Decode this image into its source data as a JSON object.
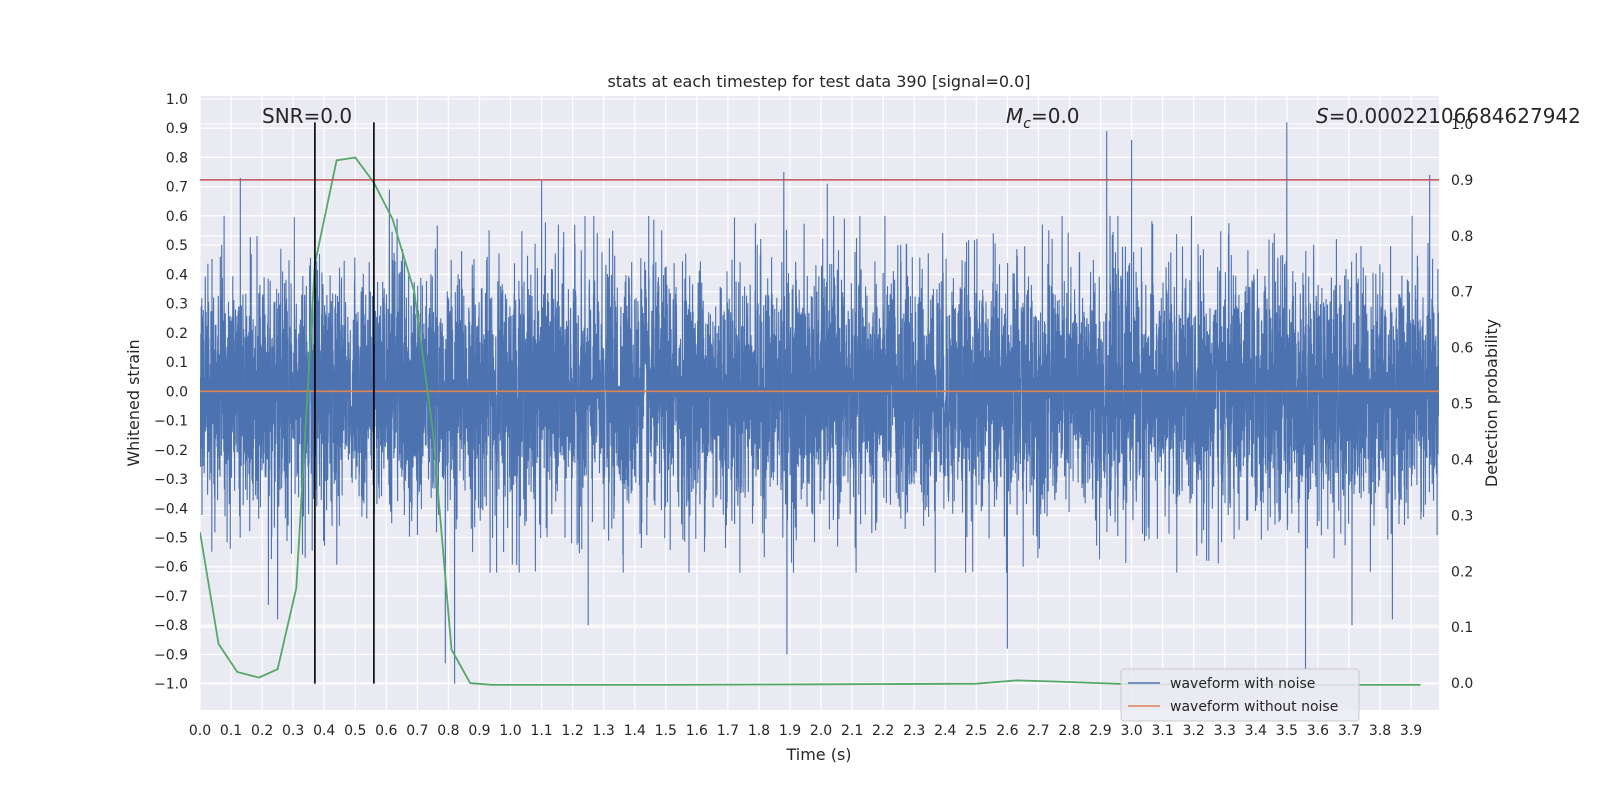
{
  "chart_data": {
    "type": "line",
    "title": "stats at each timestep for test data 390 [signal=0.0]",
    "xlabel": "Time (s)",
    "ylabel": "Whitened strain",
    "ylabel_right": "Detection probability",
    "xlim": [
      0.0,
      3.99
    ],
    "ylim": [
      -1.09,
      1.01
    ],
    "ylim_right": [
      -0.048,
      1.05
    ],
    "grid": true,
    "x_ticks": [
      "0.0",
      "0.1",
      "0.2",
      "0.3",
      "0.4",
      "0.5",
      "0.6",
      "0.7",
      "0.8",
      "0.9",
      "1.0",
      "1.1",
      "1.2",
      "1.3",
      "1.4",
      "1.5",
      "1.6",
      "1.7",
      "1.8",
      "1.9",
      "2.0",
      "2.1",
      "2.2",
      "2.3",
      "2.4",
      "2.5",
      "2.6",
      "2.7",
      "2.8",
      "2.9",
      "3.0",
      "3.1",
      "3.2",
      "3.3",
      "3.4",
      "3.5",
      "3.6",
      "3.7",
      "3.8",
      "3.9"
    ],
    "y_ticks": [
      "1.0",
      "0.9",
      "0.8",
      "0.7",
      "0.6",
      "0.5",
      "0.4",
      "0.3",
      "0.2",
      "0.1",
      "0.0",
      "−0.1",
      "−0.2",
      "−0.3",
      "−0.4",
      "−0.5",
      "−0.6",
      "−0.7",
      "−0.8",
      "−0.9",
      "−1.0"
    ],
    "y_ticks_right": [
      "1.0",
      "0.9",
      "0.8",
      "0.7",
      "0.6",
      "0.5",
      "0.4",
      "0.3",
      "0.2",
      "0.1",
      "0.0"
    ],
    "annotations": {
      "snr": "SNR=0.0",
      "mc_symbol": "M",
      "mc_sub": "c",
      "mc_value": "=0.0",
      "s_symbol": "S",
      "s_value": "=0.00022106684627942"
    },
    "series": [
      {
        "name": "waveform with noise",
        "color": "#4c72b0",
        "kind": "noise",
        "sample_rate": 2048,
        "envelope": 0.5,
        "spikes": [
          {
            "x": 0.13,
            "y": 0.73
          },
          {
            "x": 0.22,
            "y": -0.73
          },
          {
            "x": 0.25,
            "y": -0.78
          },
          {
            "x": 0.56,
            "y": 0.72
          },
          {
            "x": 0.61,
            "y": 0.69
          },
          {
            "x": 0.79,
            "y": -0.93
          },
          {
            "x": 0.82,
            "y": -1.0
          },
          {
            "x": 1.1,
            "y": 0.72
          },
          {
            "x": 1.25,
            "y": -0.8
          },
          {
            "x": 1.88,
            "y": 0.75
          },
          {
            "x": 1.89,
            "y": -0.9
          },
          {
            "x": 2.02,
            "y": 0.71
          },
          {
            "x": 2.6,
            "y": -0.88
          },
          {
            "x": 2.92,
            "y": 0.89
          },
          {
            "x": 3.0,
            "y": 0.86
          },
          {
            "x": 3.5,
            "y": 0.92
          },
          {
            "x": 3.56,
            "y": -0.95
          },
          {
            "x": 3.71,
            "y": -0.8
          },
          {
            "x": 3.84,
            "y": -0.78
          },
          {
            "x": 3.96,
            "y": 0.74
          }
        ]
      },
      {
        "name": "waveform without noise",
        "color": "#dd8452",
        "kind": "constant",
        "value": 0.0
      },
      {
        "name": "",
        "color": "#55a868",
        "axis": "right",
        "x": [
          0.0,
          0.06,
          0.12,
          0.19,
          0.25,
          0.31,
          0.37,
          0.44,
          0.5,
          0.56,
          0.62,
          0.69,
          0.75,
          0.81,
          0.87,
          0.94,
          1.0,
          1.5,
          2.0,
          2.5,
          2.63,
          2.75,
          3.0,
          3.5,
          3.93
        ],
        "values": [
          0.27,
          0.07,
          0.02,
          0.01,
          0.025,
          0.17,
          0.75,
          0.935,
          0.94,
          0.895,
          0.83,
          0.7,
          0.45,
          0.06,
          0.0,
          -0.003,
          -0.003,
          -0.003,
          -0.002,
          -0.001,
          0.005,
          0.003,
          -0.002,
          -0.003,
          -0.003
        ]
      }
    ],
    "threshold_line": {
      "axis": "right",
      "value": 0.9,
      "color": "#c44e52"
    },
    "vertical_lines": [
      {
        "x": 0.37,
        "ymin": -1.0,
        "ymax": 0.92,
        "color": "#000000"
      },
      {
        "x": 0.56,
        "ymin": -1.0,
        "ymax": 0.92,
        "color": "#000000"
      }
    ],
    "legend": {
      "position": "bottom-right",
      "entries": [
        "waveform with noise",
        "waveform without noise"
      ]
    }
  }
}
